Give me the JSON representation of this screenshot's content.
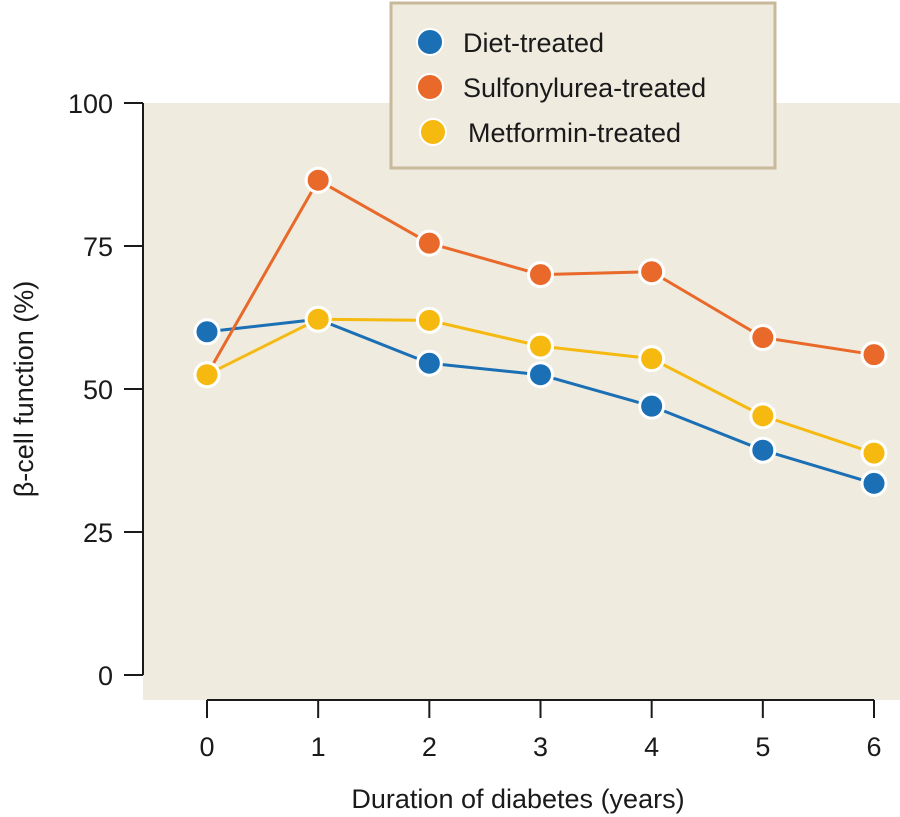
{
  "chart_data": {
    "type": "line",
    "title": "",
    "xlabel": "Duration of diabetes (years)",
    "ylabel": "β-cell function (%)",
    "x": [
      0,
      1,
      2,
      3,
      4,
      5,
      6
    ],
    "xticks": [
      "0",
      "1",
      "2",
      "3",
      "4",
      "5",
      "6"
    ],
    "yticks": [
      "0",
      "25",
      "50",
      "75",
      "100"
    ],
    "ylim": [
      0,
      100
    ],
    "xlim": [
      0,
      6
    ],
    "grid": false,
    "legend_position": "top-right",
    "plot_background": "#efebdf",
    "legend_border": "#c8b99a",
    "series": [
      {
        "name": "Diet-treated",
        "color": "#1a6fb5",
        "values": [
          60,
          62.2,
          54.5,
          52.5,
          47,
          39.3,
          33.5
        ]
      },
      {
        "name": "Sulfonylurea-treated",
        "color": "#e8692a",
        "values": [
          52.5,
          86.5,
          75.5,
          70,
          70.5,
          59,
          56
        ]
      },
      {
        "name": "Metformin-treated",
        "color": "#f5b90f",
        "values": [
          52.5,
          62.2,
          62,
          57.5,
          55.3,
          45.3,
          38.8
        ]
      }
    ]
  }
}
